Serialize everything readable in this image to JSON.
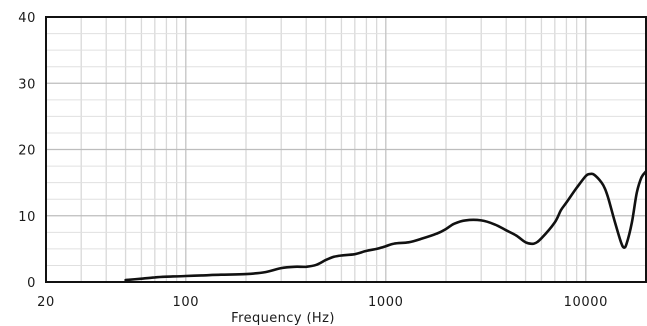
{
  "chart_data": {
    "type": "line",
    "title": "",
    "xlabel": "Frequency (Hz)",
    "ylabel": "",
    "x_scale": "log",
    "xlim": [
      20,
      20000
    ],
    "ylim": [
      0,
      40
    ],
    "grid": true,
    "x_tick_labels": [
      {
        "value": 20,
        "label": "20"
      },
      {
        "value": 100,
        "label": "100"
      },
      {
        "value": 1000,
        "label": "1000"
      },
      {
        "value": 10000,
        "label": "10000"
      }
    ],
    "y_tick_labels": [
      {
        "value": 0,
        "label": "0"
      },
      {
        "value": 10,
        "label": "10"
      },
      {
        "value": 20,
        "label": "20"
      },
      {
        "value": 30,
        "label": "30"
      },
      {
        "value": 40,
        "label": "40"
      }
    ],
    "series": [
      {
        "color": "#111111",
        "points": [
          [
            50,
            0.3
          ],
          [
            60,
            0.5
          ],
          [
            70,
            0.7
          ],
          [
            80,
            0.8
          ],
          [
            100,
            0.9
          ],
          [
            120,
            1.0
          ],
          [
            150,
            1.1
          ],
          [
            200,
            1.2
          ],
          [
            250,
            1.5
          ],
          [
            300,
            2.1
          ],
          [
            350,
            2.3
          ],
          [
            400,
            2.3
          ],
          [
            450,
            2.6
          ],
          [
            500,
            3.3
          ],
          [
            550,
            3.8
          ],
          [
            600,
            4.0
          ],
          [
            700,
            4.2
          ],
          [
            800,
            4.7
          ],
          [
            900,
            5.0
          ],
          [
            1000,
            5.4
          ],
          [
            1100,
            5.8
          ],
          [
            1300,
            6.0
          ],
          [
            1500,
            6.5
          ],
          [
            1800,
            7.3
          ],
          [
            2000,
            8.0
          ],
          [
            2200,
            8.8
          ],
          [
            2500,
            9.3
          ],
          [
            3000,
            9.3
          ],
          [
            3500,
            8.7
          ],
          [
            4000,
            7.8
          ],
          [
            4500,
            7.0
          ],
          [
            5000,
            6.0
          ],
          [
            5500,
            5.8
          ],
          [
            6000,
            6.6
          ],
          [
            7000,
            9.0
          ],
          [
            7500,
            10.8
          ],
          [
            8000,
            12.0
          ],
          [
            9000,
            14.2
          ],
          [
            10000,
            16.0
          ],
          [
            10500,
            16.3
          ],
          [
            11000,
            16.2
          ],
          [
            12000,
            15.0
          ],
          [
            12500,
            14.0
          ],
          [
            13000,
            12.5
          ],
          [
            14000,
            9.0
          ],
          [
            15000,
            6.0
          ],
          [
            15500,
            5.2
          ],
          [
            16000,
            5.8
          ],
          [
            17000,
            9.0
          ],
          [
            18000,
            13.5
          ],
          [
            19000,
            15.8
          ],
          [
            20000,
            16.7
          ]
        ]
      }
    ]
  }
}
